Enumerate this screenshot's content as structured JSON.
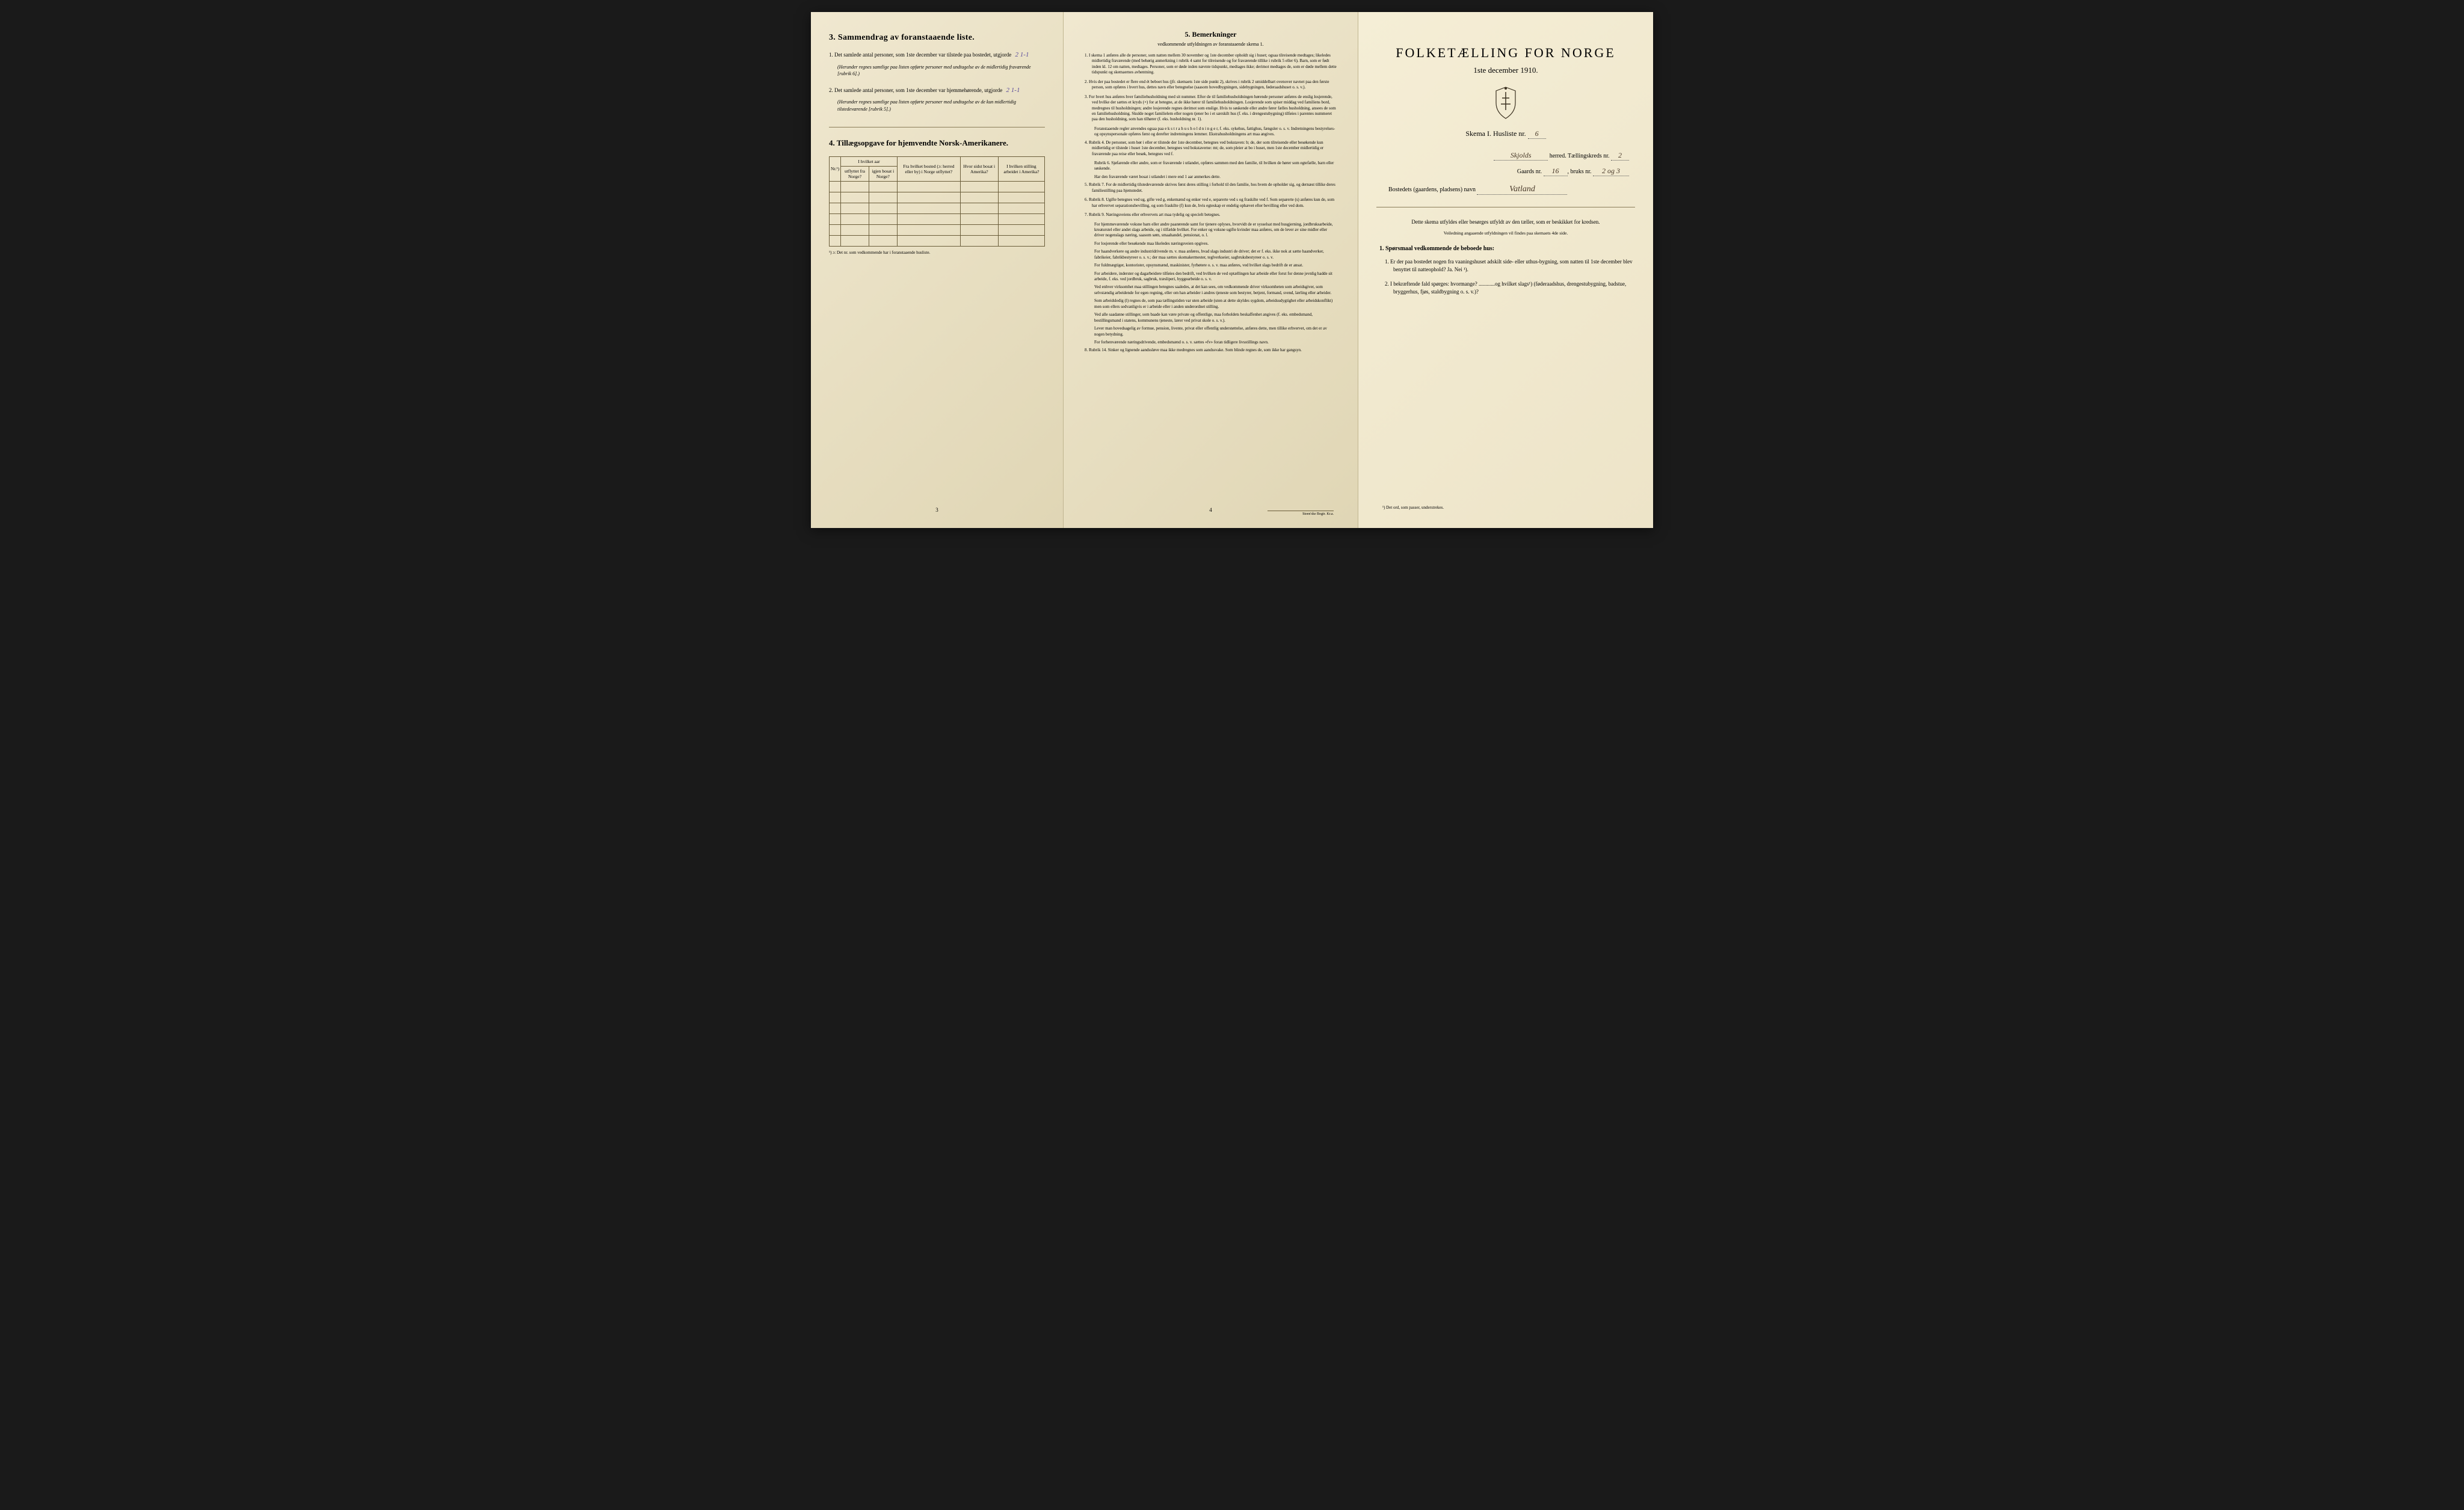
{
  "colors": {
    "paper_bg": "#ede4c8",
    "paper_bg_dark": "#e0d6b5",
    "text": "#2a2418",
    "border": "#6a5d3a",
    "handwriting": "#5a4a9a",
    "handwriting_brown": "#4a3a2a"
  },
  "typography": {
    "body_fontsize": 9,
    "small_fontsize": 7,
    "title_fontsize": 22
  },
  "panel_left": {
    "section3": {
      "title": "3.   Sammendrag av foranstaaende liste.",
      "item1_pre": "1.  Det samlede antal personer, som 1ste december var tilstede paa bostedet, utgjorde",
      "item1_fill": "2 1-1",
      "item1_note": "(Herunder regnes samtlige paa listen opførte personer med undtagelse av de midlertidig fraværende [rubrik 6].)",
      "item2_pre": "2.  Det samlede antal personer, som 1ste december var hjemmehørende, utgjorde",
      "item2_fill": "2 1-1",
      "item2_note": "(Herunder regnes samtlige paa listen opførte personer med undtagelse av de kun midlertidig tilstedeværende [rubrik 5].)"
    },
    "section4": {
      "title": "4.  Tillægsopgave for hjemvendte Norsk-Amerikanere.",
      "table": {
        "headers": {
          "nr": "Nr.¹)",
          "col1_top": "I hvilket aar",
          "col1a": "utflyttet fra Norge?",
          "col1b": "igjen bosat i Norge?",
          "col2": "Fra hvilket bosted (ɔ: herred eller by) i Norge utflyttet?",
          "col3": "Hvor sidst bosat i Amerika?",
          "col4": "I hvilken stilling arbeidet i Amerika?"
        },
        "num_empty_rows": 6
      },
      "footnote": "¹) ɔ: Det nr. som vedkommende har i foranstaaende husliste."
    },
    "page_num": "3"
  },
  "panel_center": {
    "title": "5.   Bemerkninger",
    "subtitle": "vedkommende utfyldningen av foranstaaende skema 1.",
    "items": [
      "1.  I skema 1 anføres alle de personer, som natten mellem 30 november og 1ste december opholdt sig i huset; ogsaa tilreisende medtages; likeledes midlertidig fraværende (med behørig anmerkning i rubrik 4 samt for tilreisende og for fraværende tillike i rubrik 5 eller 6). Barn, som er født inden kl. 12 om natten, medtages. Personer, som er døde inden nævnte tidspunkt, medtages ikke; derimot medtages de, som er døde mellem dette tidspunkt og skemaernes avhentning.",
      "2.  Hvis der paa bostedet er flere end ét beboet hus (jfr. skemaets 1ste side punkt 2), skrives i rubrik 2 umiddelbart ovenover navnet paa den første person, som opføres i hvert hus, dettes navn eller betegnelse (saasom hovedbygningen, sidebygningen, føderaadshuset o. s. v.).",
      "3.  For hvert hus anføres hver familiehusholdning med sit nummer. Efter de til familiehusholdningen hørende personer anføres de enslig losjerende, ved hvilke der sættes et kryds (×) for at betegne, at de ikke hører til familiehusholdningen. Losjerende som spiser middag ved familiens bord, medregnes til husholdningen; andre losjerende regnes derimot som enslige. Hvis to søskende eller andre fører fælles husholdning, ansees de som en familiehusholdning. Skulde noget familielem eller nogen tjener bo i et særskilt hus (f. eks. i drengestubygning) tilføies i parentes nummeret paa den husholdning, som han tilhører (f. eks. husholdning nr. 1).",
      "    Foranstaaende regler anvendes ogsaa paa e k s t r a h u s h o l d n i n g e r, f. eks. sykehus, fattighus, fængsler o. s. v. Indretningens bestyrelses- og opsynspersonale opføres først og derefter indretningens lemmer. Ekstrahusholdningens art maa angives.",
      "4.  Rubrik 4. De personer, som bør i eller er tilstede der 1ste december, betegnes ved bokstaven: b; de, der som tilreisende eller besøkende kun midlertidig er tilstede i huset 1ste december, betegnes ved bokstaverne: mt; de, som pleier at bo i huset, men 1ste december midlertidig er fraværende paa reise eller besøk, betegnes ved f.",
      "    Rubrik 6. Sjøfarende eller andre, som er fraværende i utlandet, opføres sammen med den familie, til hvilken de hører som egtefælle, barn eller søskende.",
      "    Har den fraværende været bosat i utlandet i mere end 1 aar anmerkes dette.",
      "5.  Rubrik 7. For de midlertidig tilstedeværende skrives først deres stilling i forhold til den familie, hos hvem de opholder sig, og dernæst tillike deres familiestilling paa hjemstedet.",
      "6.  Rubrik 8. Ugifte betegnes ved ug, gifte ved g, enkemænd og enker ved e, separerte ved s og fraskilte ved f. Som separerte (s) anføres kun de, som har erhvervet separationsbevilling, og som fraskilte (f) kun de, hvis egteskap er endelig ophævet efter bevilling eller ved dom.",
      "7.  Rubrik 9. Næringsveiens eller erhvervets art maa tydelig og specielt betegnes.",
      "    For hjemmeværende voksne barn eller andre paarørende samt for tjenere oplyses, hvorvidt de er sysselsat med husgjerning, jordbruksarbeide, kreaturstel eller andet slags arbeide, og i tilfælde hvilket. For enker og voksne ugifte kvinder maa anføres, om de lever av sine midler eller driver nogenslags næring, saasom søm, smaahandel, pensionat, o. l.",
      "    For losjerende eller besøkende maa likeledes næringsveien opgives.",
      "    For haandverkere og andre industridrivende m. v. maa anføres, hvad slags industri de driver; det er f. eks. ikke nok at sætte haandverker, fabrikeier, fabrikbestyreer o. s. v.; der maa sættes skomakermester, teglverkseier, sagbruksbestyreer o. s. v.",
      "    For fuldmægtiger, kontorister, opsynsmænd, maskinister, fyrbøtere o. s. v. maa anføres, ved hvilket slags bedrift de er ansat.",
      "    For arbeidere, inderster og dagarbeidere tilføies den bedrift, ved hvilken de ved optællingen har arbeide eller forut for denne jevnlig hadde sit arbeide, f. eks. ved jordbruk, sagbruk, træsliperi, byggearbeide o. s. v.",
      "    Ved enhver virksomhet maa stillingen betegnes saaledes, at det kan sees, om vedkommende driver virksomheten som arbeidsgiver, som selvstændig arbeidende for egen regning, eller om han arbeider i andres tjeneste som bestyrer, betjent, formand, svend, lærling eller arbeider.",
      "    Som arbeidsledig (l) regnes de, som paa tællingstiden var uten arbeide (uten at dette skyldes sygdom, arbeidsudygtighet eller arbeidskonflikt) men som ellers sedvanligvis er i arbeide eller i anden underordnet stilling.",
      "    Ved alle saadanne stillinger, som baade kan være private og offentlige, maa forholdets beskaffenhet angives (f. eks. embedsmand, bestillingsmand i statens, kommunens tjeneste, lærer ved privat skole o. s. v.).",
      "    Lever man hovedsagelig av formue, pension, livente, privat eller offentlig understøttelse, anføres dette, men tillike erhvervet, om det er av nogen betydning.",
      "    For forhenværende næringsdrivende, embedsmænd o. s. v. sættes «fv» foran tidligere livsstillings navn.",
      "8.  Rubrik 14. Sinker og lignende aandssløve maa ikke medregnes som aandssvake. Som blinde regnes de, som ikke har gangsyn."
    ],
    "page_num": "4",
    "printer": "Steen'ske Bogtr.  Kr.a."
  },
  "panel_right": {
    "main_title": "FOLKETÆLLING FOR NORGE",
    "main_subtitle": "1ste december 1910.",
    "skema_label": "Skema I.   Husliste nr.",
    "skema_fill": "6",
    "herred_fill": "Skjolds",
    "herred_label": "herred.  Tællingskreds nr.",
    "kreds_fill": "2",
    "gaard_label": "Gaards nr.",
    "gaard_fill": "16",
    "bruks_label": "bruks nr.",
    "bruks_fill": "2 og 3",
    "bosted_label": "Bostedets (gaardens, pladsens) navn",
    "bosted_fill": "Vatland",
    "instruction": "Dette skema utfyldes eller besørges utfyldt av den tæller, som er beskikket for kredsen.",
    "instruction_small": "Veiledning angaaende utfyldningen vil findes paa skemaets 4de side.",
    "q_header": "1. Spørsmaal vedkommende de beboede hus:",
    "q1": "1.  Er der paa bostedet nogen fra vaaningshuset adskilt side- eller uthus-bygning, som natten til 1ste december blev benyttet til natteophold?   Ja.   Nei ¹).",
    "q2": "2.  I bekræftende fald spørges: hvormange? ............og hvilket slags¹) (føderaadshus, drengestubygning, badstue, bryggerhus, fjøs, staldbygning o. s. v.)?",
    "footnote": "¹) Det ord, som passer, understrekes."
  }
}
